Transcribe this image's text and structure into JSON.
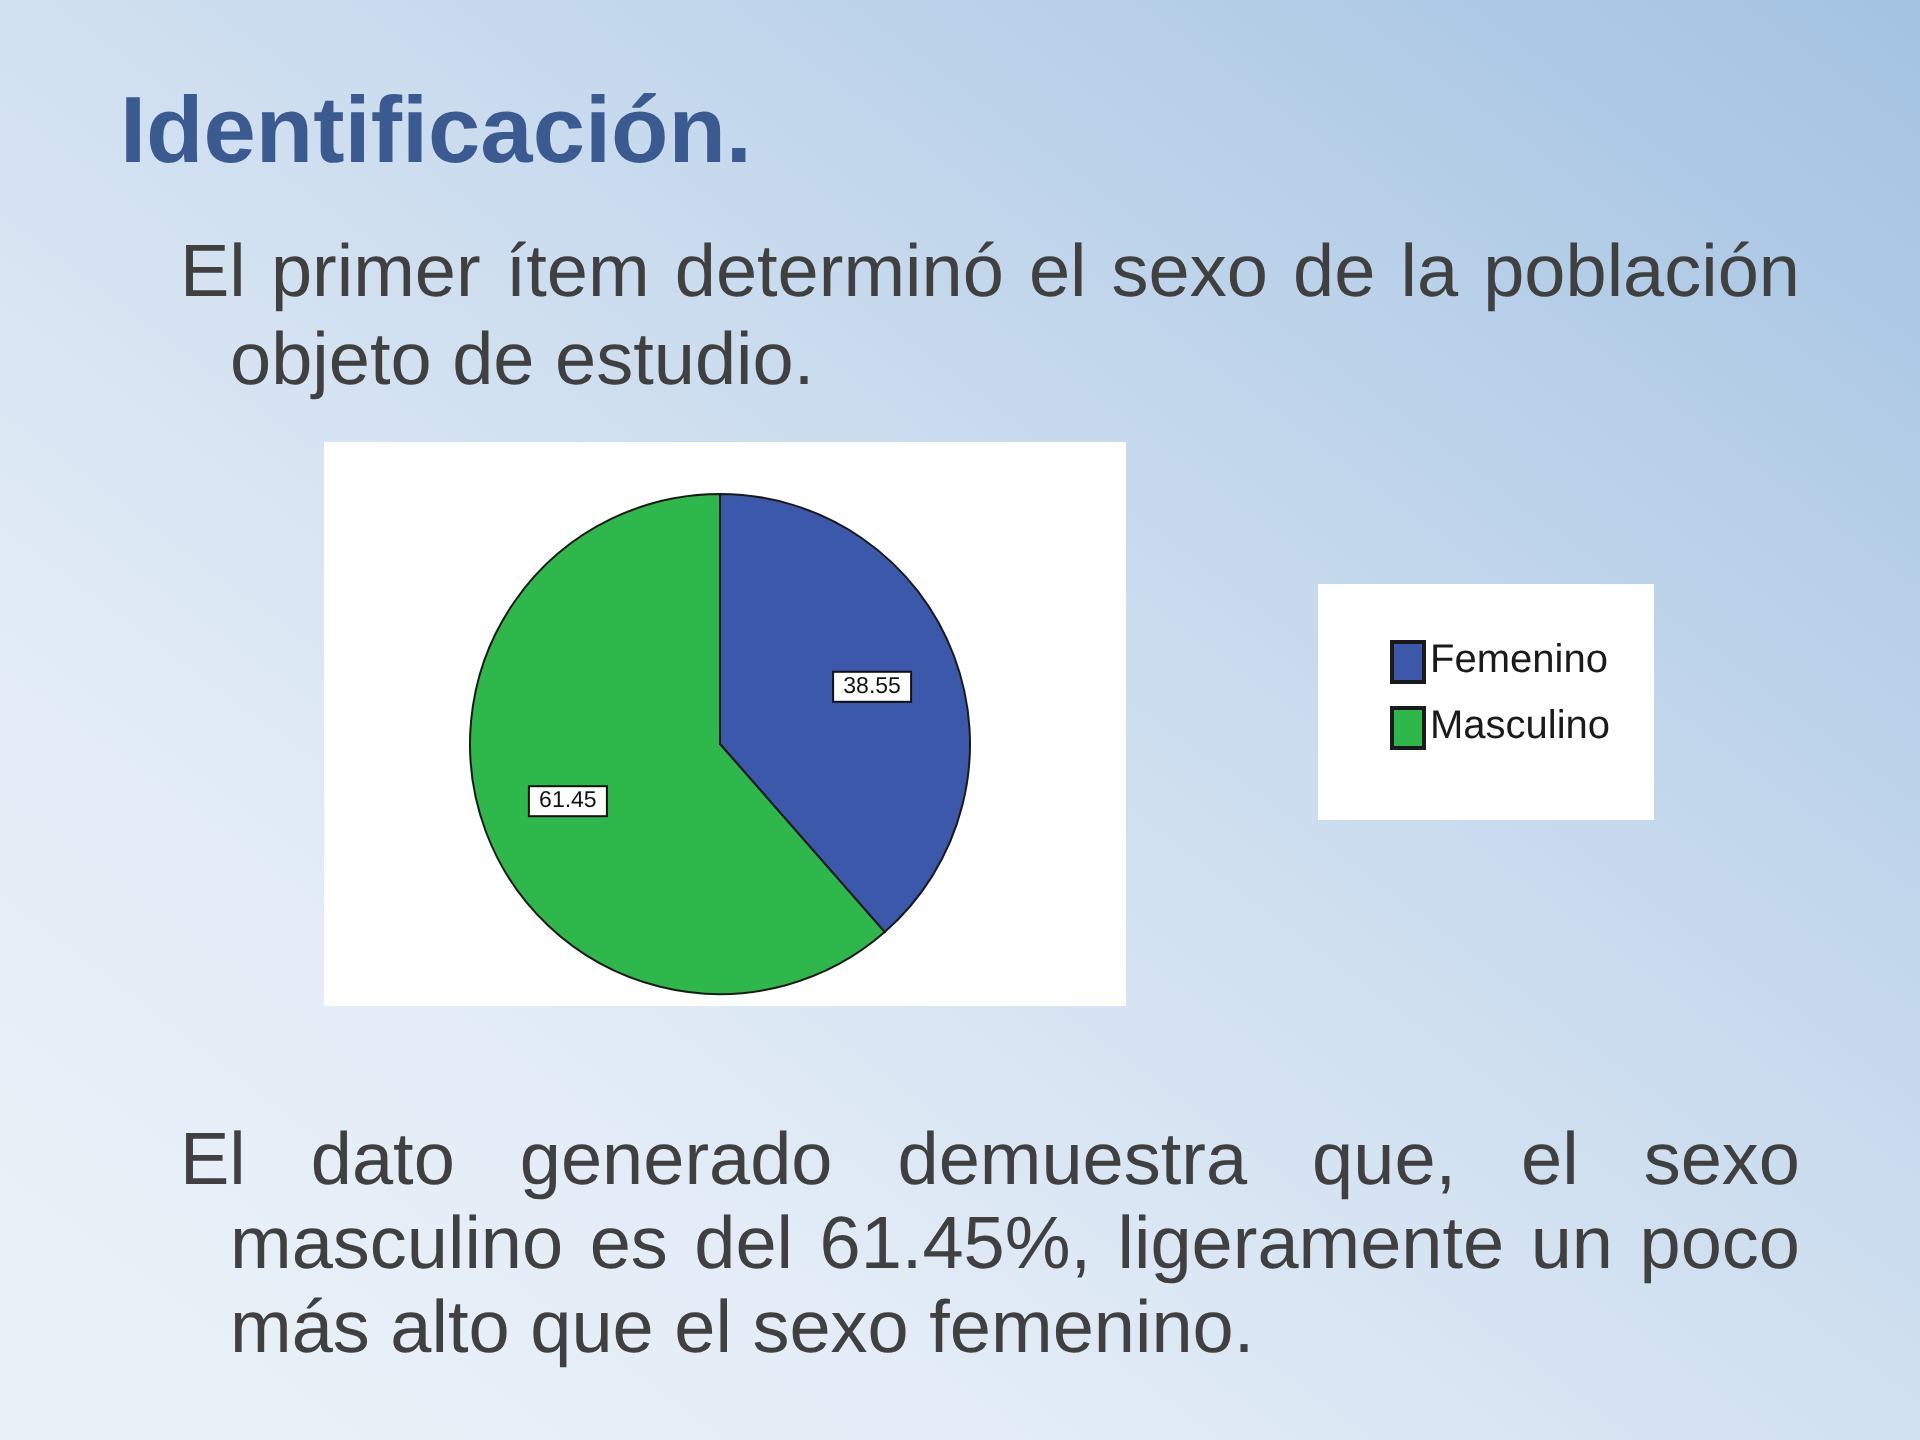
{
  "chart_data": {
    "type": "pie",
    "title": "Identificación.",
    "subtitle": "El primer ítem determinó el sexo de la población objeto de estudio.",
    "categories": [
      "Femenino",
      "Masculino"
    ],
    "values": [
      38.55,
      61.45
    ],
    "colors": [
      "#3c58ab",
      "#2eb74a"
    ],
    "data_labels": true,
    "legend": "right",
    "annotations": [
      "El dato generado demuestra que, el sexo masculino es del 61.45%, ligeramente un poco más alto que el sexo femenino."
    ]
  }
}
